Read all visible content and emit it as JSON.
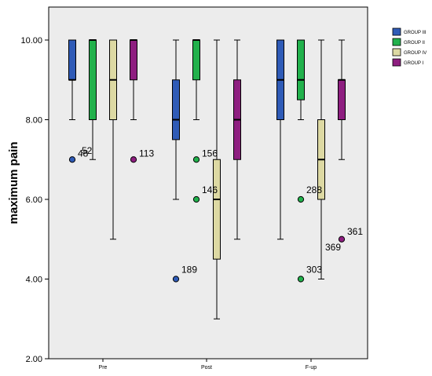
{
  "chart_data": {
    "type": "box",
    "ylabel": "maximum pain",
    "ylim": [
      2,
      10
    ],
    "yticks": [
      "2.00",
      "4.00",
      "6.00",
      "8.00",
      "10.00"
    ],
    "categories": [
      "Pre",
      "Post",
      "F-up"
    ],
    "legend": {
      "placement": "top-right"
    },
    "grid": false,
    "series": [
      {
        "name": "GROUP III",
        "color": "#2f5bb7",
        "boxes": [
          {
            "min": 8,
            "q1": 9,
            "median": 9,
            "q3": 10,
            "max": 10
          },
          {
            "min": 6,
            "q1": 7.5,
            "median": 8,
            "q3": 9,
            "max": 10
          },
          {
            "min": 5,
            "q1": 8,
            "median": 9,
            "q3": 10,
            "max": 10
          }
        ],
        "outliers": [
          {
            "category": "Pre",
            "value": 7,
            "label": "48"
          },
          {
            "category": "Post",
            "value": 4,
            "label": "189"
          }
        ]
      },
      {
        "name": "GROUP II",
        "color": "#22b14c",
        "boxes": [
          {
            "min": 7,
            "q1": 8,
            "median": 10,
            "q3": 10,
            "max": 10
          },
          {
            "min": 8,
            "q1": 9,
            "median": 10,
            "q3": 10,
            "max": 10
          },
          {
            "min": 8,
            "q1": 8.5,
            "median": 9,
            "q3": 10,
            "max": 10
          }
        ],
        "outliers": [
          {
            "category": "Post",
            "value": 7,
            "label": "156"
          },
          {
            "category": "Post",
            "value": 6,
            "label": "146"
          },
          {
            "category": "F-up",
            "value": 6,
            "label": "288"
          },
          {
            "category": "F-up",
            "value": 4,
            "label": "303"
          }
        ]
      },
      {
        "name": "GROUP IV",
        "color": "#ddd9a3",
        "boxes": [
          {
            "min": 5,
            "q1": 8,
            "median": 9,
            "q3": 10,
            "max": 10
          },
          {
            "min": 3,
            "q1": 4.5,
            "median": 6,
            "q3": 7,
            "max": 10
          },
          {
            "min": 4,
            "q1": 6,
            "median": 7,
            "q3": 8,
            "max": 10
          }
        ],
        "outliers": []
      },
      {
        "name": "GROUP I",
        "color": "#8e1e80",
        "boxes": [
          {
            "min": 8,
            "q1": 9,
            "median": 10,
            "q3": 10,
            "max": 10
          },
          {
            "min": 5,
            "q1": 7,
            "median": 8,
            "q3": 9,
            "max": 10
          },
          {
            "min": 7,
            "q1": 8,
            "median": 9,
            "q3": 9,
            "max": 10
          }
        ],
        "outliers": [
          {
            "category": "Pre",
            "value": 7,
            "label": "113"
          },
          {
            "category": "F-up",
            "value": 5,
            "label": "361"
          }
        ]
      }
    ],
    "extra_labels": [
      {
        "text": "52"
      },
      {
        "text": "369"
      }
    ]
  }
}
